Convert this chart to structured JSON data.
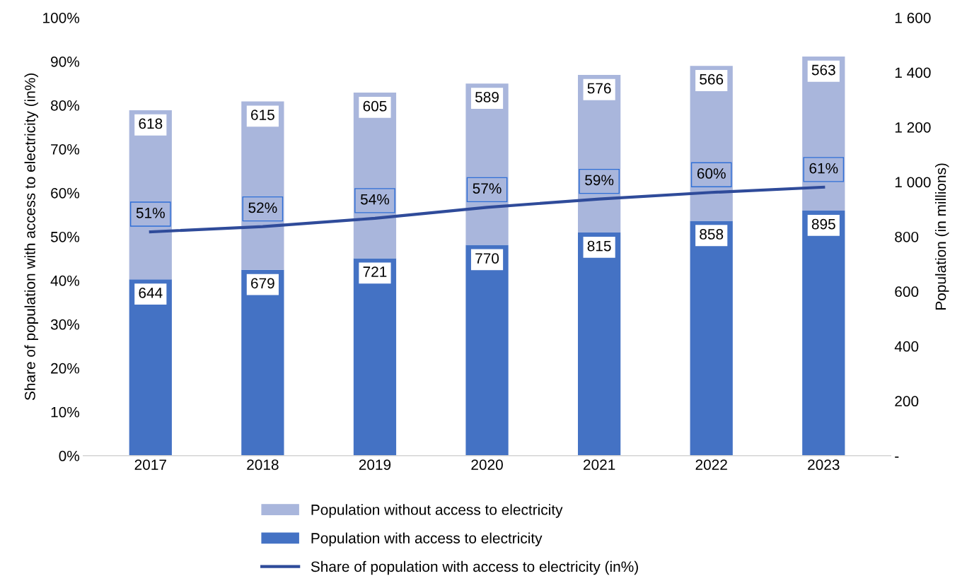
{
  "chart_data": {
    "type": "bar",
    "stacked": true,
    "categories": [
      "2017",
      "2018",
      "2019",
      "2020",
      "2021",
      "2022",
      "2023"
    ],
    "ylabel": "Share of population with access to electricity (in%)",
    "y2label": "Population (in millions)",
    "ylim": [
      0,
      100
    ],
    "yticks": [
      {
        "value": 0,
        "label": "0%"
      },
      {
        "value": 10,
        "label": "10%"
      },
      {
        "value": 20,
        "label": "20%"
      },
      {
        "value": 30,
        "label": "30%"
      },
      {
        "value": 40,
        "label": "40%"
      },
      {
        "value": 50,
        "label": "50%"
      },
      {
        "value": 60,
        "label": "60%"
      },
      {
        "value": 70,
        "label": "70%"
      },
      {
        "value": 80,
        "label": "80%"
      },
      {
        "value": 90,
        "label": "90%"
      },
      {
        "value": 100,
        "label": "100%"
      }
    ],
    "y2lim": [
      0,
      1600
    ],
    "y2ticks": [
      {
        "value": 0,
        "label": "-"
      },
      {
        "value": 200,
        "label": "200"
      },
      {
        "value": 400,
        "label": "400"
      },
      {
        "value": 600,
        "label": "600"
      },
      {
        "value": 800,
        "label": "800"
      },
      {
        "value": 1000,
        "label": "1 000"
      },
      {
        "value": 1200,
        "label": "1 200"
      },
      {
        "value": 1400,
        "label": "1 400"
      },
      {
        "value": 1600,
        "label": "1 600"
      }
    ],
    "series": [
      {
        "name": "Population with access to electricity",
        "axis": "y2",
        "color": "#4472c4",
        "values": [
          644,
          679,
          721,
          770,
          815,
          858,
          895
        ],
        "data_labels": true
      },
      {
        "name": "Population without access to electricity",
        "axis": "y2",
        "color": "#a9b6dc",
        "values": [
          618,
          615,
          605,
          589,
          576,
          566,
          563
        ],
        "data_labels": true
      },
      {
        "name": "Share of population with access to electricity (in%)",
        "type": "line",
        "axis": "y",
        "color": "#2f4b9a",
        "values": [
          51.1,
          52.3,
          54.2,
          56.7,
          58.6,
          60.1,
          61.3
        ],
        "value_labels": [
          "51%",
          "52%",
          "54%",
          "57%",
          "59%",
          "60%",
          "61%"
        ],
        "marker": "none",
        "line_style": "solid"
      }
    ],
    "legend": "bottom",
    "grid": false
  }
}
